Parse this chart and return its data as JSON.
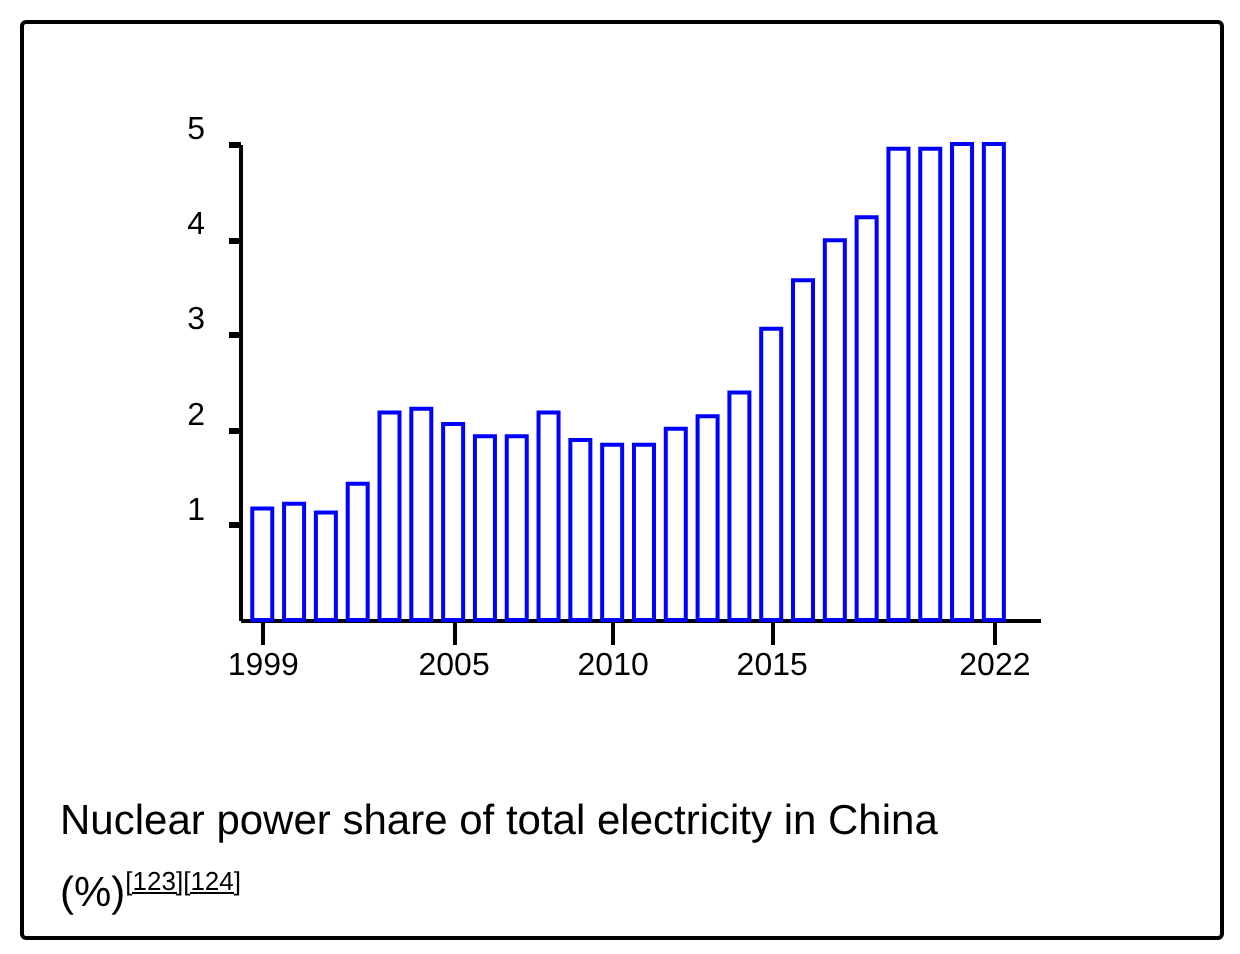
{
  "chart_data": {
    "type": "bar",
    "title": "Nuclear power share of total electricity in China (%)$^{[123][124]}$",
    "x": [
      1999,
      2000,
      2001,
      2002,
      2003,
      2004,
      2005,
      2006,
      2007,
      2008,
      2009,
      2010,
      2011,
      2012,
      2013,
      2014,
      2015,
      2016,
      2017,
      2018,
      2019,
      2020,
      2021,
      2022
    ],
    "values": [
      1.17,
      1.22,
      1.13,
      1.43,
      2.18,
      2.22,
      2.06,
      1.93,
      1.93,
      2.18,
      1.89,
      1.84,
      1.84,
      2.01,
      2.14,
      2.39,
      3.06,
      3.57,
      3.99,
      4.23,
      4.95,
      4.95,
      5.0,
      5.0
    ],
    "color": "#0000ff",
    "xlim": [
      1998.3,
      2023.45
    ],
    "xticks": [
      1999,
      2005,
      2010,
      2015,
      2022
    ],
    "ylim": [
      0,
      5
    ],
    "yticks": [
      1,
      2,
      3,
      4,
      5
    ],
    "grid": false
  }
}
